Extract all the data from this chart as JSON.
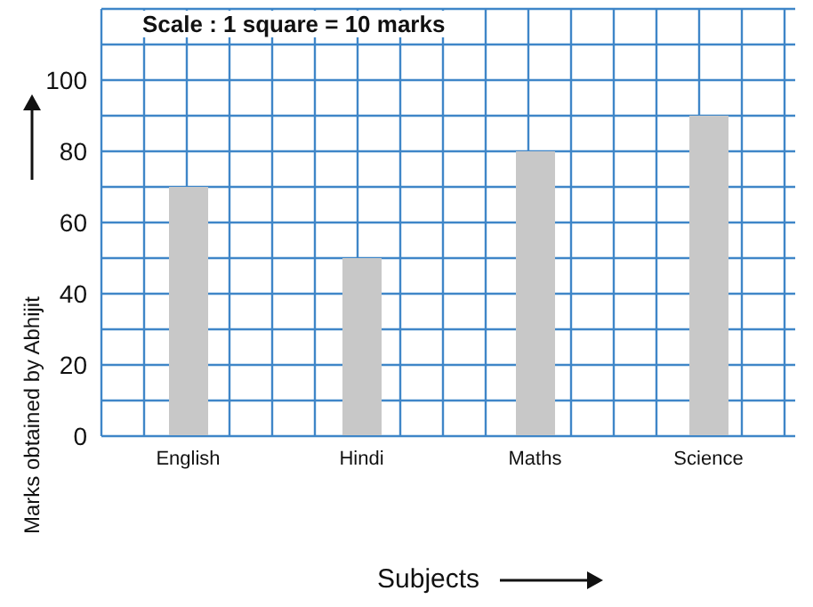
{
  "chart_data": {
    "type": "bar",
    "annotations": [
      "Scale : 1 square = 10 marks"
    ],
    "xlabel": "Subjects",
    "ylabel": "Marks obtained by Abhijit",
    "categories": [
      "English",
      "Hindi",
      "Maths",
      "Science"
    ],
    "values": [
      70,
      50,
      80,
      90
    ],
    "color": "#c8c8c8",
    "ylim": [
      0,
      120
    ],
    "yticks": [
      0,
      {
        "value": 10,
        "label": null
      },
      20,
      {
        "value": 30,
        "label": null
      },
      40,
      {
        "value": 50,
        "label": null
      },
      60,
      {
        "value": 70,
        "label": null
      },
      80,
      {
        "value": 90,
        "label": null
      },
      100,
      {
        "value": 110,
        "label": null
      },
      {
        "value": 120,
        "label": null
      }
    ],
    "grid": true
  }
}
